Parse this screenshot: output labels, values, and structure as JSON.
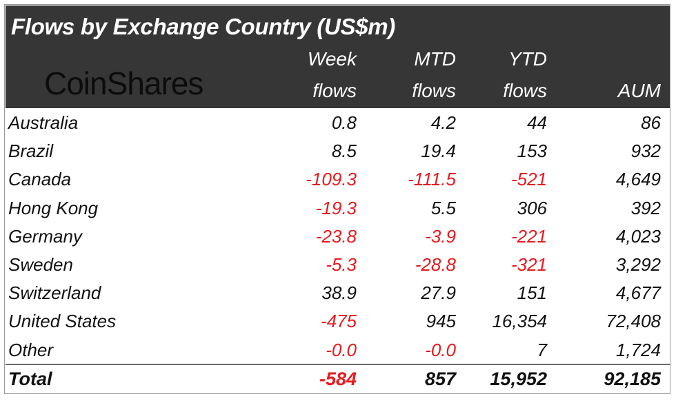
{
  "title": "Flows by Exchange Country (US$m)",
  "logo": "CoinShares",
  "colors": {
    "header_bg": "#363636",
    "negative": "#e8191f",
    "text": "#111111"
  },
  "chart_data": {
    "type": "table",
    "title": "Flows by Exchange Country (US$m)",
    "columns": [
      {
        "line1": "Week",
        "line2": "flows"
      },
      {
        "line1": "MTD",
        "line2": "flows"
      },
      {
        "line1": "YTD",
        "line2": "flows"
      },
      {
        "line1": "",
        "line2": "AUM"
      }
    ],
    "rows": [
      {
        "name": "Australia",
        "values": [
          "0.8",
          "4.2",
          "44",
          "86"
        ]
      },
      {
        "name": "Brazil",
        "values": [
          "8.5",
          "19.4",
          "153",
          "932"
        ]
      },
      {
        "name": "Canada",
        "values": [
          "-109.3",
          "-111.5",
          "-521",
          "4,649"
        ]
      },
      {
        "name": "Hong Kong",
        "values": [
          "-19.3",
          "5.5",
          "306",
          "392"
        ]
      },
      {
        "name": "Germany",
        "values": [
          "-23.8",
          "-3.9",
          "-221",
          "4,023"
        ]
      },
      {
        "name": "Sweden",
        "values": [
          "-5.3",
          "-28.8",
          "-321",
          "3,292"
        ]
      },
      {
        "name": "Switzerland",
        "values": [
          "38.9",
          "27.9",
          "151",
          "4,677"
        ]
      },
      {
        "name": "United States",
        "values": [
          "-475",
          "945",
          "16,354",
          "72,408"
        ]
      },
      {
        "name": "Other",
        "values": [
          "-0.0",
          "-0.0",
          "7",
          "1,724"
        ]
      }
    ],
    "total": {
      "name": "Total",
      "values": [
        "-584",
        "857",
        "15,952",
        "92,185"
      ]
    }
  }
}
